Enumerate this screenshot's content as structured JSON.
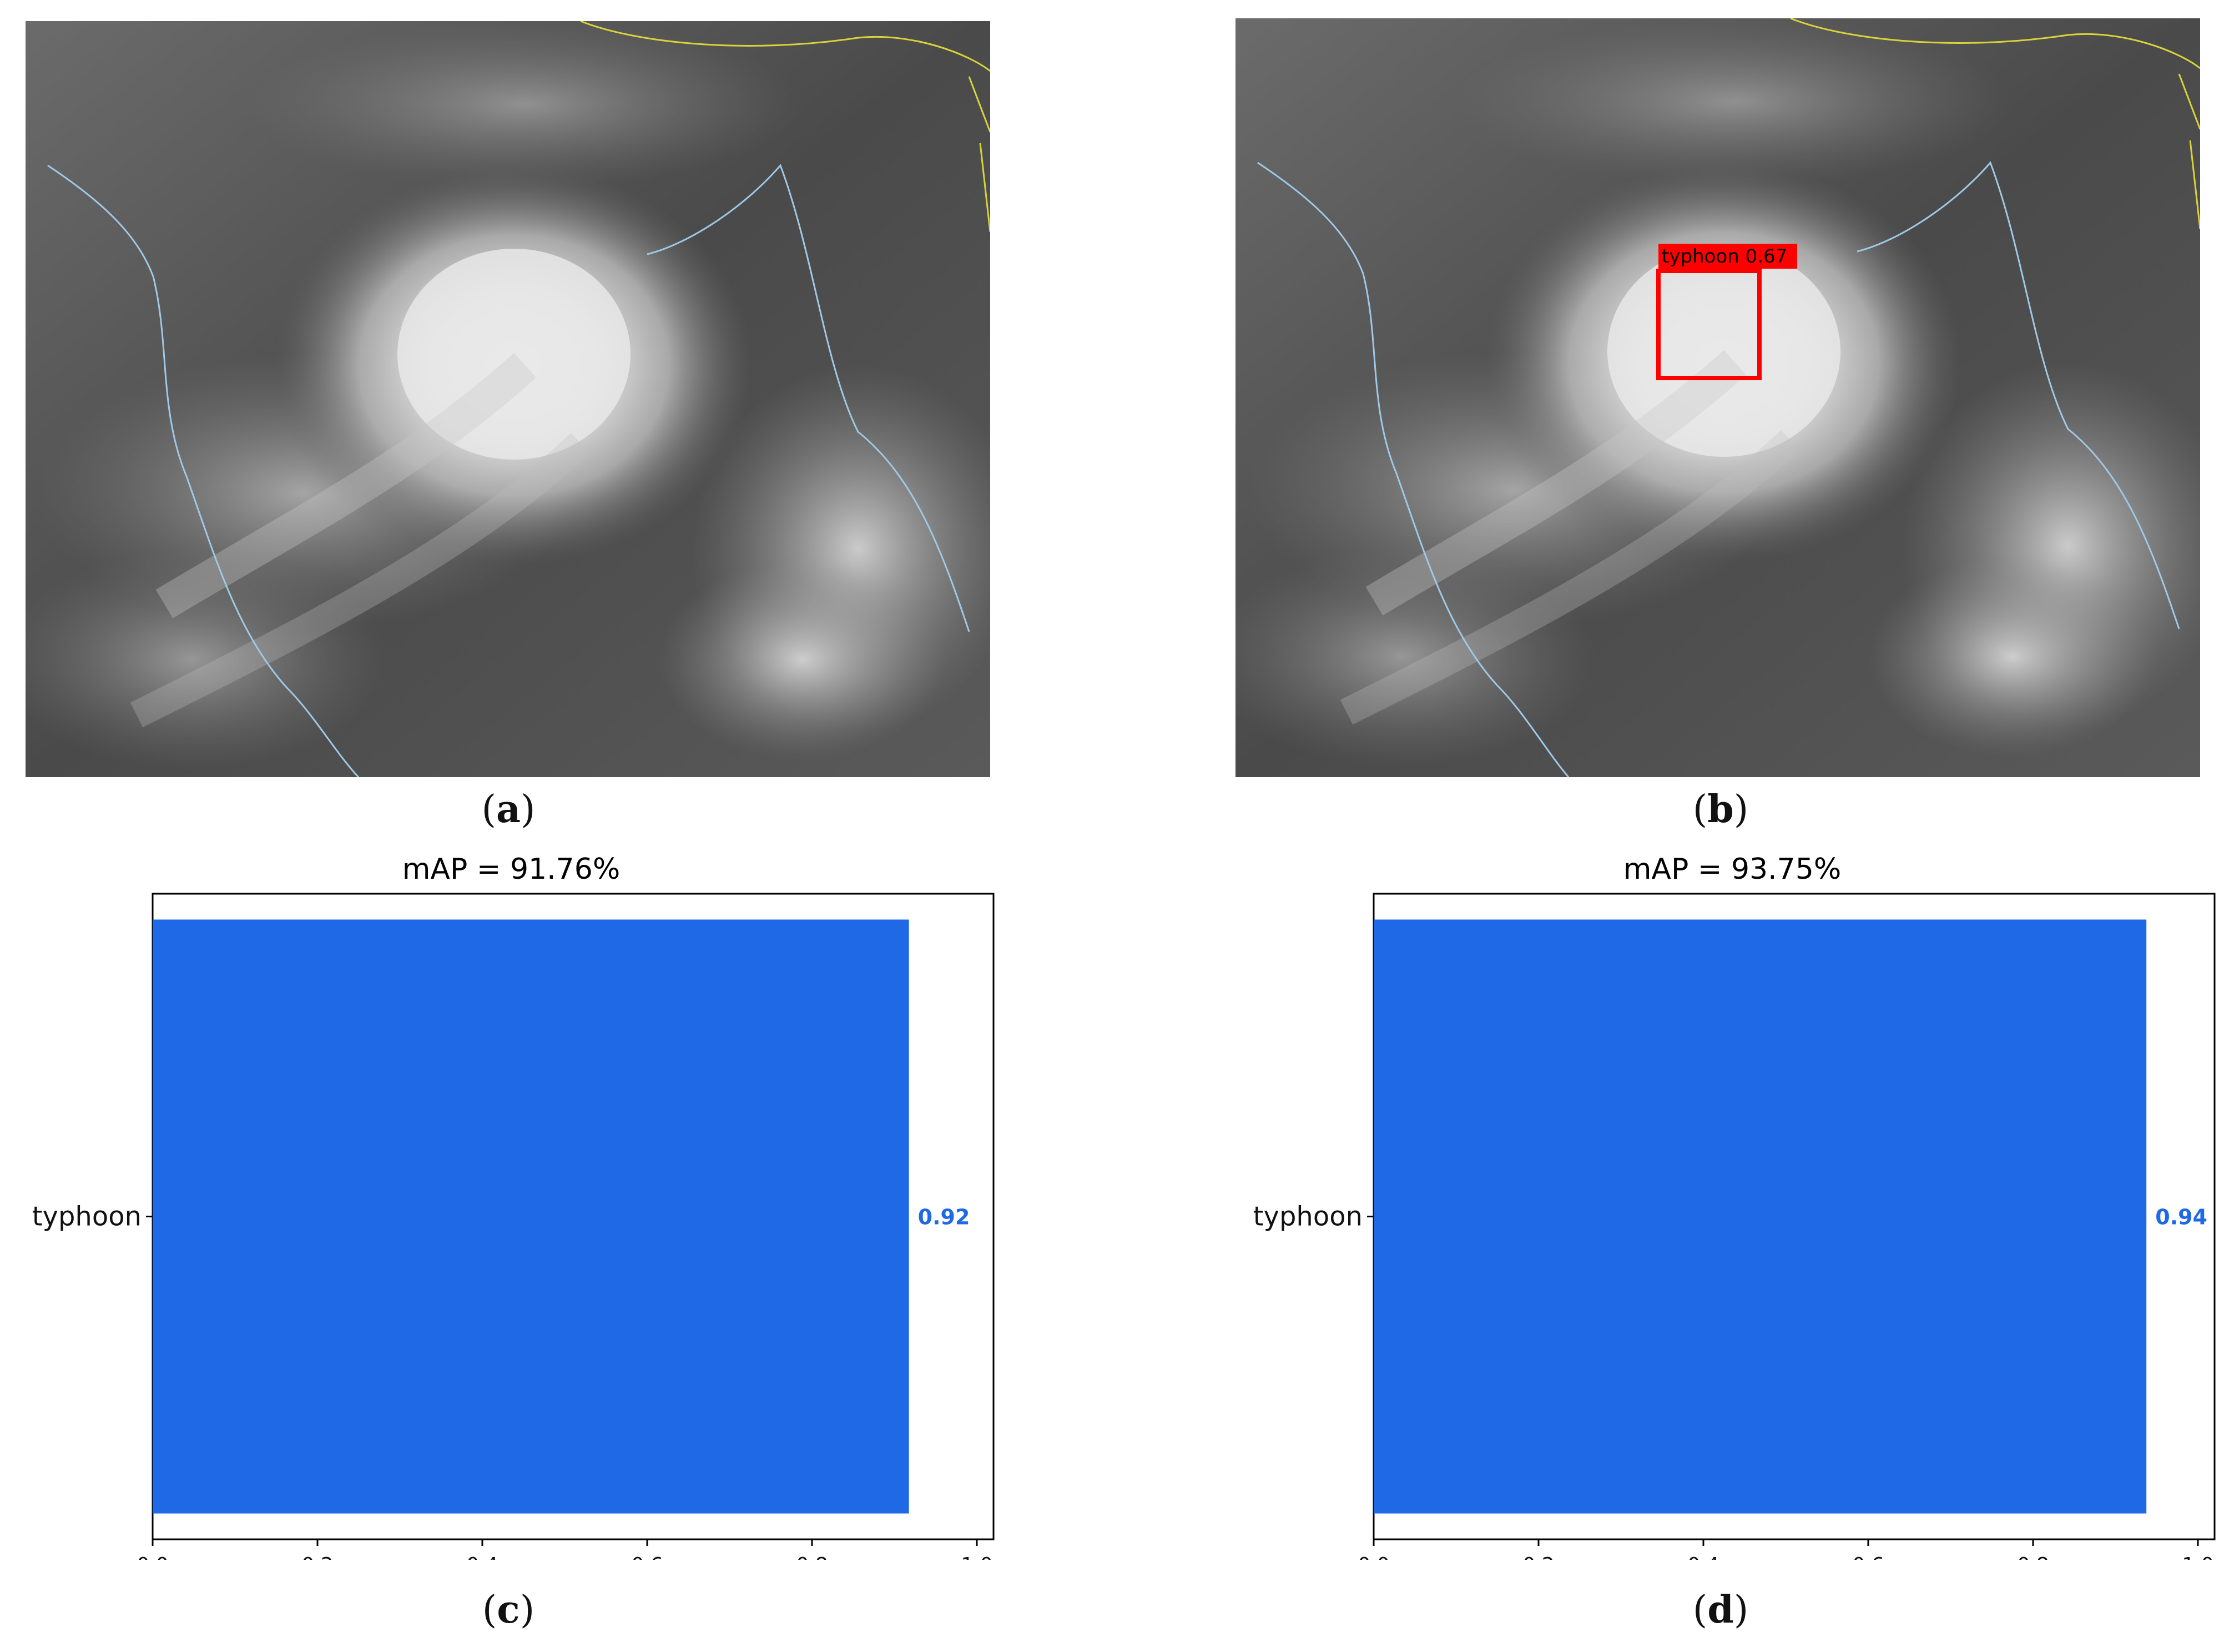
{
  "panels": {
    "a": {
      "caption": "a"
    },
    "b": {
      "caption": "b",
      "detection_label": "typhoon 0.67",
      "box_color": "#ff0000"
    },
    "c": {
      "caption": "c"
    },
    "d": {
      "caption": "d"
    }
  },
  "colors": {
    "bar": "#1f69e6",
    "value_label": "#1f69e6",
    "detection": "#ff0000"
  },
  "chart_data": [
    {
      "type": "bar",
      "orientation": "horizontal",
      "title": "mAP = 91.76%",
      "categories": [
        "typhoon"
      ],
      "values": [
        0.9176
      ],
      "value_labels": [
        "0.92"
      ],
      "xlim": [
        0.0,
        1.0
      ],
      "xticks": [
        "0.0",
        "0.2",
        "0.4",
        "0.6",
        "0.8",
        "1.0"
      ],
      "grid": false
    },
    {
      "type": "bar",
      "orientation": "horizontal",
      "title": "mAP = 93.75%",
      "categories": [
        "typhoon"
      ],
      "values": [
        0.9375
      ],
      "value_labels": [
        "0.94"
      ],
      "xlim": [
        0.0,
        1.0
      ],
      "xticks": [
        "0.0",
        "0.2",
        "0.4",
        "0.6",
        "0.8",
        "1.0"
      ],
      "grid": false
    }
  ]
}
